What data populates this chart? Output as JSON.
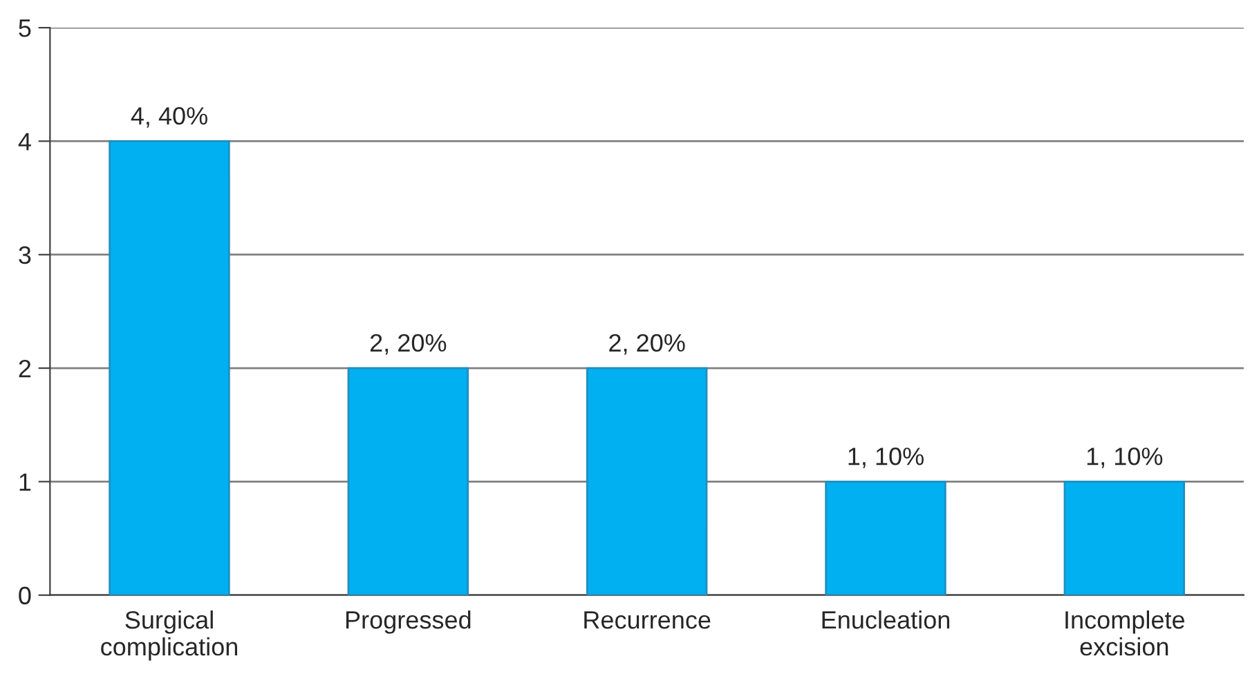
{
  "chart_data": {
    "type": "bar",
    "categories": [
      "Surgical\ncomplication",
      "Progressed",
      "Recurrence",
      "Enucleation",
      "Incomplete\nexcision"
    ],
    "values": [
      4,
      2,
      2,
      1,
      1
    ],
    "value_labels": [
      "4, 40%",
      "2, 20%",
      "2, 20%",
      "1, 10%",
      "1, 10%"
    ],
    "color": "#00b0f0",
    "ylim": [
      0,
      5
    ],
    "yticks": [
      0,
      1,
      2,
      3,
      4,
      5
    ],
    "grid": "y"
  }
}
